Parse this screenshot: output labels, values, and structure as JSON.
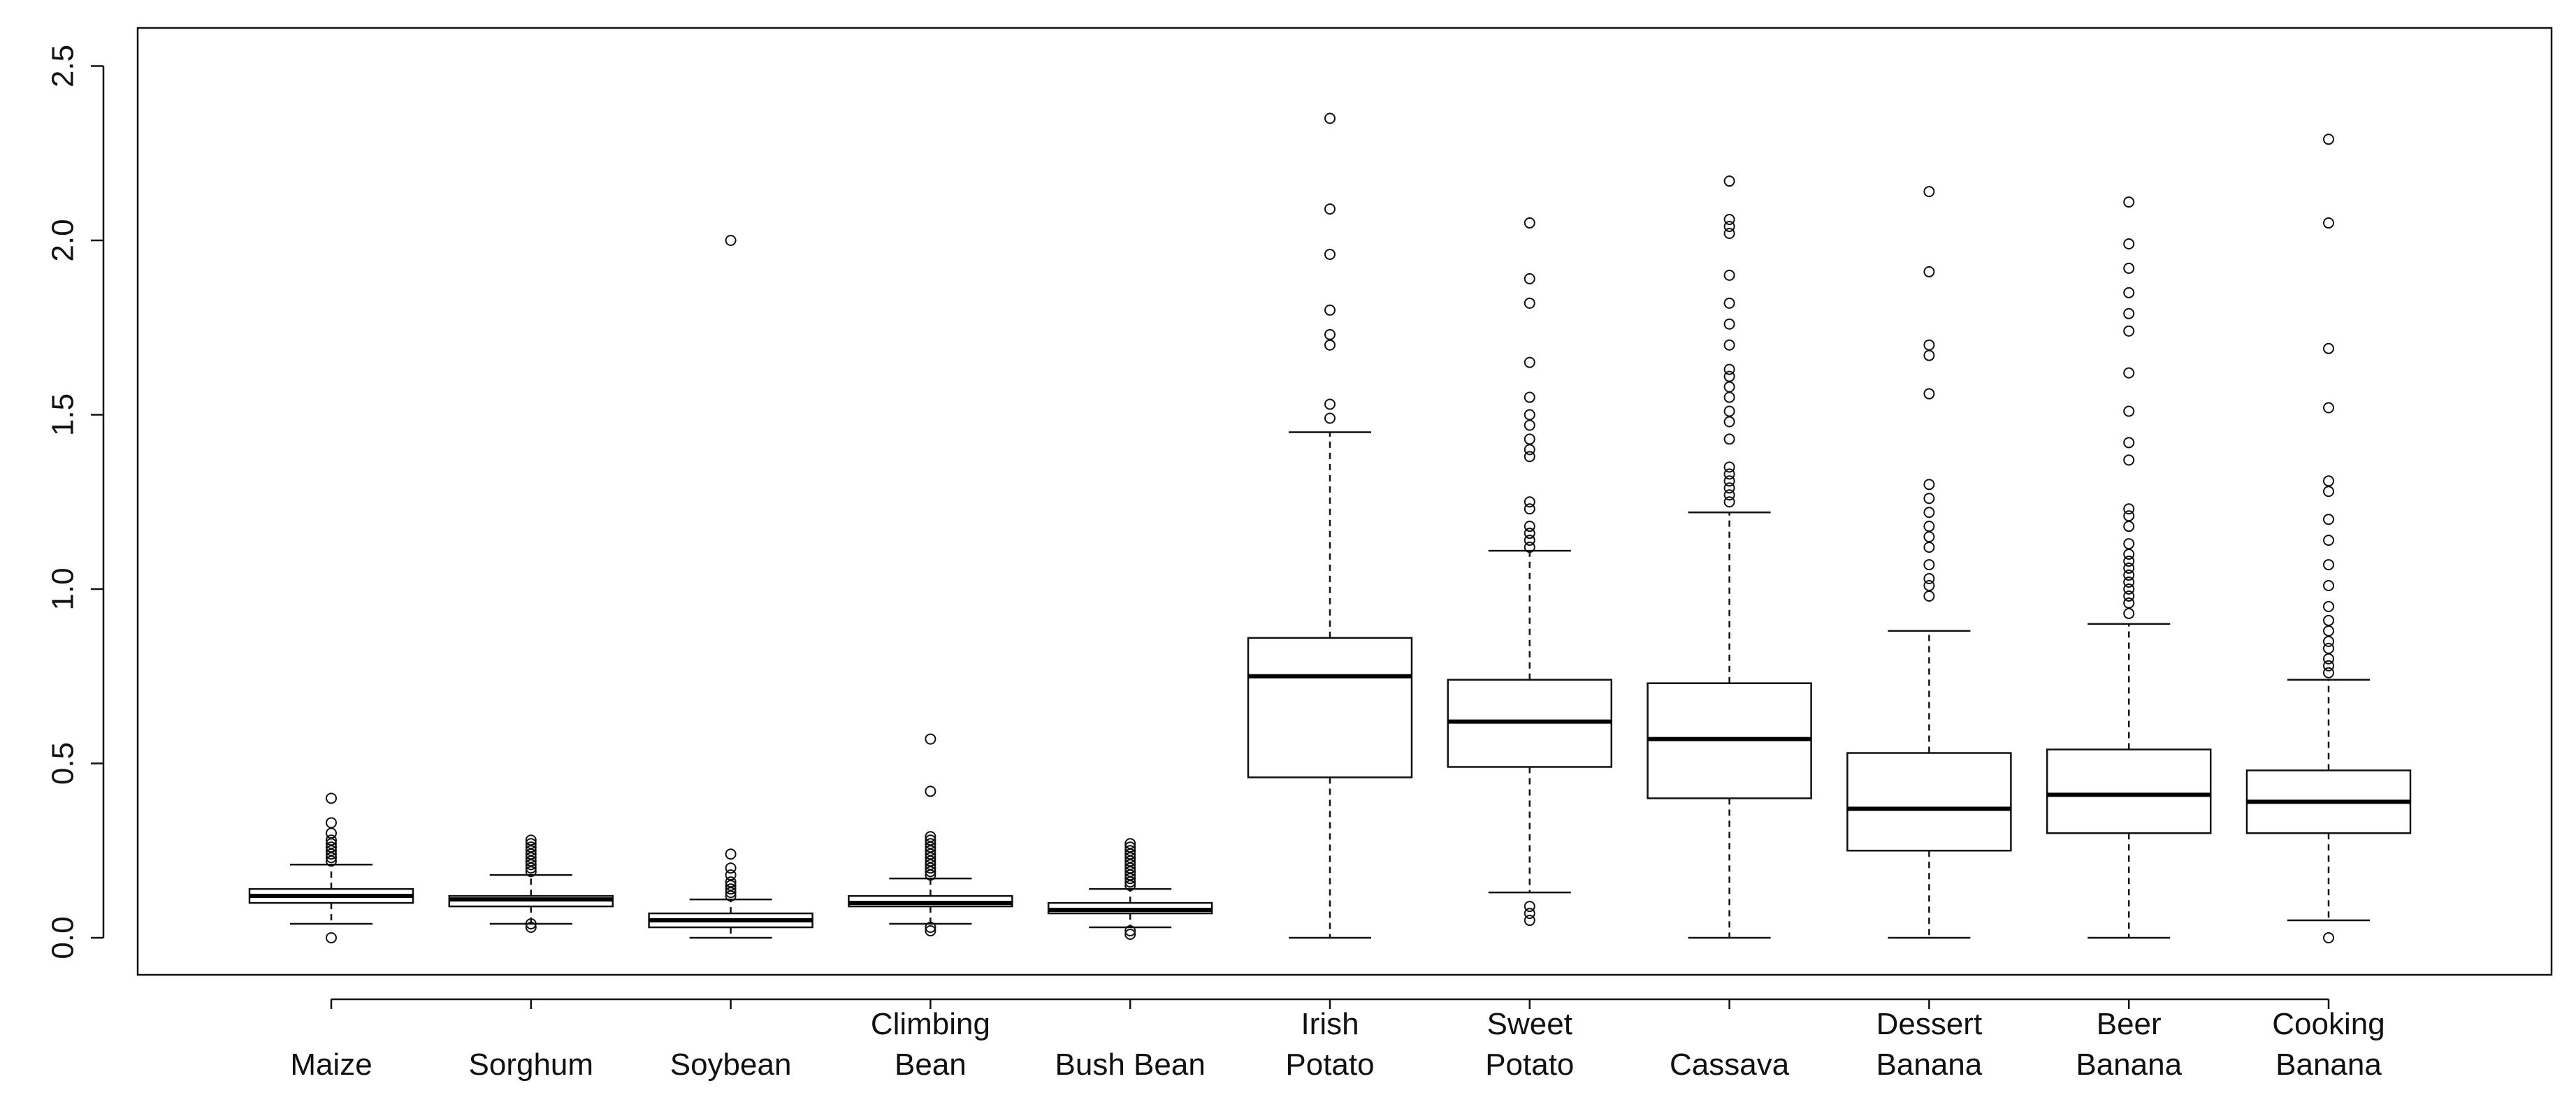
{
  "chart_data": {
    "type": "boxplot",
    "title": "",
    "xlabel": "",
    "ylabel": "",
    "ylim": [
      -0.05,
      2.55
    ],
    "yticks": [
      0.0,
      0.5,
      1.0,
      1.5,
      2.0,
      2.5
    ],
    "ytick_labels": [
      "0.0",
      "0.5",
      "1.0",
      "1.5",
      "2.0",
      "2.5"
    ],
    "categories": [
      {
        "lines": [
          "Maize"
        ],
        "min": 0.04,
        "q1": 0.1,
        "median": 0.12,
        "q3": 0.14,
        "max": 0.21,
        "outliers": [
          0.0,
          0.22,
          0.23,
          0.24,
          0.25,
          0.26,
          0.27,
          0.28,
          0.3,
          0.33,
          0.4
        ]
      },
      {
        "lines": [
          "Sorghum"
        ],
        "min": 0.04,
        "q1": 0.09,
        "median": 0.11,
        "q3": 0.12,
        "max": 0.18,
        "outliers": [
          0.03,
          0.04,
          0.19,
          0.2,
          0.21,
          0.22,
          0.23,
          0.24,
          0.25,
          0.26,
          0.27,
          0.28
        ]
      },
      {
        "lines": [
          "Soybean"
        ],
        "min": 0.0,
        "q1": 0.03,
        "median": 0.05,
        "q3": 0.07,
        "max": 0.11,
        "outliers": [
          0.12,
          0.13,
          0.14,
          0.15,
          0.16,
          0.18,
          0.2,
          0.24,
          2.0
        ]
      },
      {
        "lines": [
          "Climbing",
          "Bean"
        ],
        "min": 0.04,
        "q1": 0.09,
        "median": 0.1,
        "q3": 0.12,
        "max": 0.17,
        "outliers": [
          0.02,
          0.03,
          0.18,
          0.19,
          0.2,
          0.21,
          0.22,
          0.23,
          0.24,
          0.25,
          0.26,
          0.27,
          0.28,
          0.29,
          0.42,
          0.57
        ]
      },
      {
        "lines": [
          "Bush Bean"
        ],
        "min": 0.03,
        "q1": 0.07,
        "median": 0.08,
        "q3": 0.1,
        "max": 0.14,
        "outliers": [
          0.01,
          0.02,
          0.15,
          0.16,
          0.17,
          0.18,
          0.19,
          0.2,
          0.21,
          0.22,
          0.23,
          0.24,
          0.25,
          0.26,
          0.27
        ]
      },
      {
        "lines": [
          "Irish",
          "Potato"
        ],
        "min": 0.0,
        "q1": 0.46,
        "median": 0.75,
        "q3": 0.86,
        "max": 1.45,
        "outliers": [
          1.49,
          1.53,
          1.7,
          1.73,
          1.8,
          1.96,
          2.09,
          2.35
        ]
      },
      {
        "lines": [
          "Sweet",
          "Potato"
        ],
        "min": 0.13,
        "q1": 0.49,
        "median": 0.62,
        "q3": 0.74,
        "max": 1.11,
        "outliers": [
          0.05,
          0.07,
          0.09,
          1.12,
          1.14,
          1.16,
          1.18,
          1.23,
          1.25,
          1.38,
          1.4,
          1.43,
          1.47,
          1.5,
          1.55,
          1.65,
          1.82,
          1.89,
          2.05
        ]
      },
      {
        "lines": [
          "Cassava"
        ],
        "min": 0.0,
        "q1": 0.4,
        "median": 0.57,
        "q3": 0.73,
        "max": 1.22,
        "outliers": [
          1.25,
          1.27,
          1.29,
          1.31,
          1.33,
          1.35,
          1.43,
          1.48,
          1.51,
          1.55,
          1.58,
          1.61,
          1.63,
          1.7,
          1.76,
          1.82,
          1.9,
          2.02,
          2.04,
          2.06,
          2.17
        ]
      },
      {
        "lines": [
          "Dessert",
          "Banana"
        ],
        "min": 0.0,
        "q1": 0.25,
        "median": 0.37,
        "q3": 0.53,
        "max": 0.88,
        "outliers": [
          0.98,
          1.01,
          1.03,
          1.07,
          1.12,
          1.15,
          1.18,
          1.22,
          1.26,
          1.3,
          1.56,
          1.67,
          1.7,
          1.91,
          2.14
        ]
      },
      {
        "lines": [
          "Beer",
          "Banana"
        ],
        "min": 0.0,
        "q1": 0.3,
        "median": 0.41,
        "q3": 0.54,
        "max": 0.9,
        "outliers": [
          0.93,
          0.96,
          0.98,
          1.0,
          1.02,
          1.04,
          1.06,
          1.08,
          1.1,
          1.13,
          1.18,
          1.21,
          1.23,
          1.37,
          1.42,
          1.51,
          1.62,
          1.74,
          1.79,
          1.85,
          1.92,
          1.99,
          2.11
        ]
      },
      {
        "lines": [
          "Cooking",
          "Banana"
        ],
        "min": 0.05,
        "q1": 0.3,
        "median": 0.39,
        "q3": 0.48,
        "max": 0.74,
        "outliers": [
          0.0,
          0.76,
          0.78,
          0.8,
          0.83,
          0.85,
          0.88,
          0.91,
          0.95,
          1.01,
          1.07,
          1.14,
          1.2,
          1.28,
          1.31,
          1.52,
          1.69,
          2.05,
          2.29
        ]
      }
    ]
  }
}
